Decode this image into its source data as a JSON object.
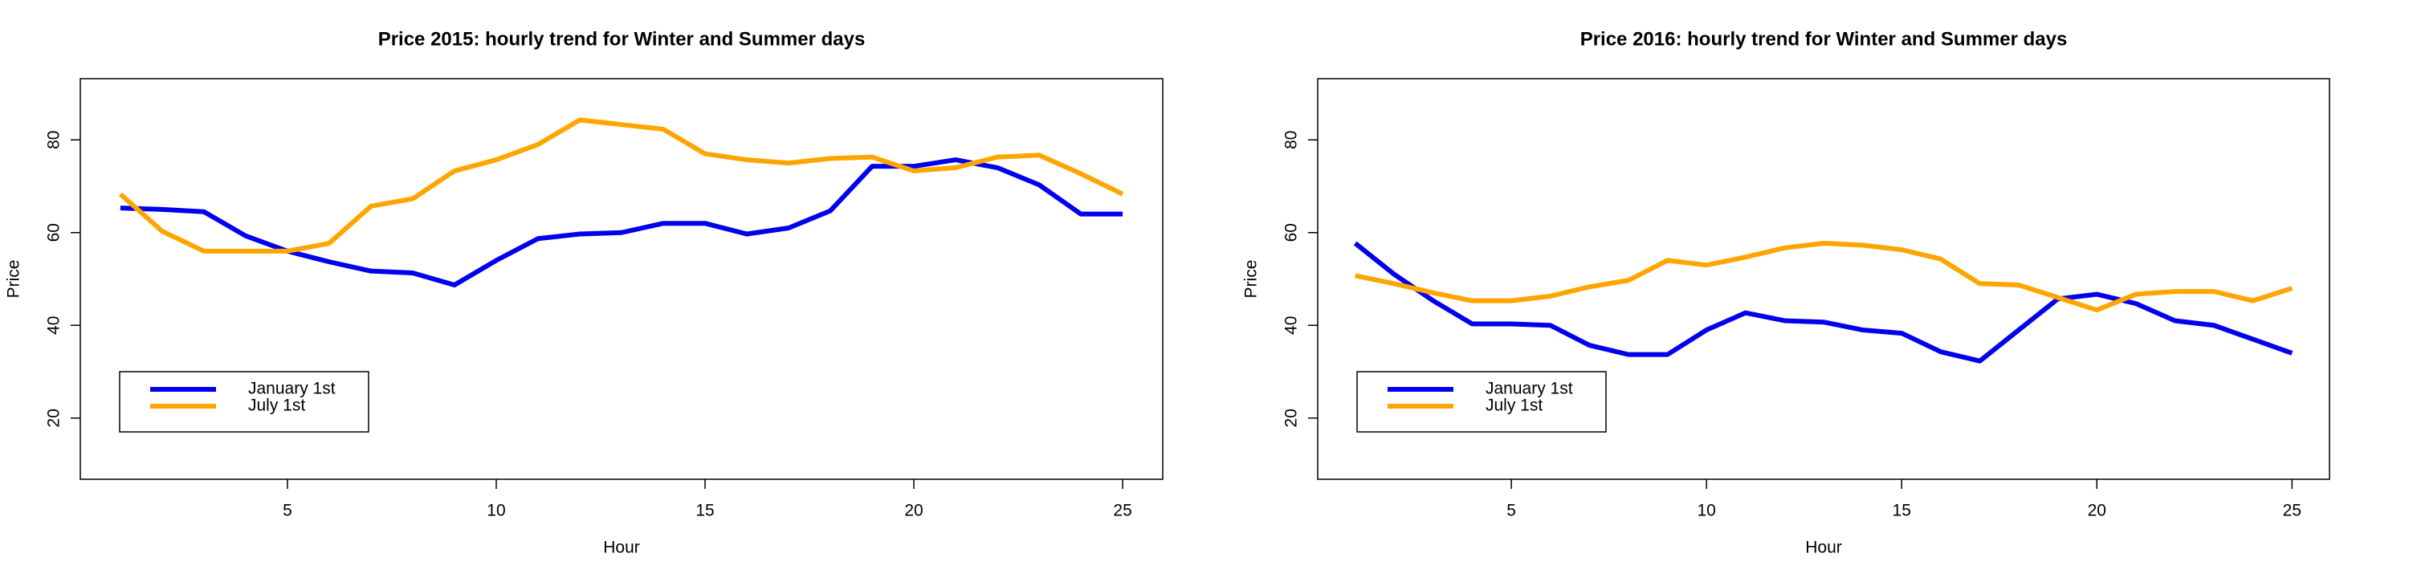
{
  "chart_data": [
    {
      "type": "line",
      "title": "Price 2015: hourly trend for Winter and Summer days",
      "x_label": "Hour",
      "y_label": "Price",
      "x": [
        1,
        2,
        3,
        4,
        5,
        6,
        7,
        8,
        9,
        10,
        11,
        12,
        13,
        14,
        15,
        16,
        17,
        18,
        19,
        20,
        21,
        22,
        23,
        24,
        25
      ],
      "series": [
        {
          "name": "January 1st",
          "color": "#0000ee",
          "values": [
            65.3,
            65,
            64.5,
            59.3,
            56,
            53.7,
            51.7,
            51.3,
            48.7,
            54,
            58.7,
            59.7,
            60,
            62,
            62,
            59.7,
            61,
            64.7,
            74.3,
            74.3,
            75.7,
            74,
            70.3,
            64,
            64
          ]
        },
        {
          "name": "July 1st",
          "color": "#ffa500",
          "values": [
            68.3,
            60.3,
            56,
            56,
            56,
            57.7,
            65.7,
            67.3,
            73.3,
            75.7,
            79,
            84.3,
            83.3,
            82.3,
            77,
            75.7,
            75,
            76,
            76.3,
            73.3,
            74,
            76.3,
            76.7,
            72.7,
            68.3
          ]
        }
      ],
      "xlim": [
        0.04,
        25.96
      ],
      "ylim": [
        6.8,
        93.2
      ],
      "xticks": [
        5,
        10,
        15,
        20,
        25
      ],
      "yticks": [
        20,
        40,
        60,
        80
      ],
      "legend": "bottom-left"
    },
    {
      "type": "line",
      "title": "Price 2016: hourly trend for Winter and Summer days",
      "x_label": "Hour",
      "y_label": "Price",
      "x": [
        1,
        2,
        3,
        4,
        5,
        6,
        7,
        8,
        9,
        10,
        11,
        12,
        13,
        14,
        15,
        16,
        17,
        18,
        19,
        20,
        21,
        22,
        23,
        24,
        25
      ],
      "series": [
        {
          "name": "January 1st",
          "color": "#0000ee",
          "values": [
            57.7,
            51,
            45.3,
            40.3,
            40.3,
            40,
            35.7,
            33.7,
            33.7,
            39,
            42.7,
            41,
            40.7,
            39,
            38.3,
            34.3,
            32.3,
            39,
            45.7,
            46.7,
            44.7,
            41,
            40,
            37,
            34
          ]
        },
        {
          "name": "July 1st",
          "color": "#ffa500",
          "values": [
            50.7,
            49,
            47,
            45.3,
            45.3,
            46.3,
            48.3,
            49.7,
            54,
            53,
            54.7,
            56.7,
            57.7,
            57.3,
            56.3,
            54.3,
            49,
            48.7,
            46,
            43.3,
            46.7,
            47.3,
            47.3,
            45.3,
            48
          ]
        }
      ],
      "xlim": [
        0.04,
        25.96
      ],
      "ylim": [
        6.8,
        93.2
      ],
      "xticks": [
        5,
        10,
        15,
        20,
        25
      ],
      "yticks": [
        20,
        40,
        60,
        80
      ],
      "legend": "bottom-left"
    }
  ]
}
